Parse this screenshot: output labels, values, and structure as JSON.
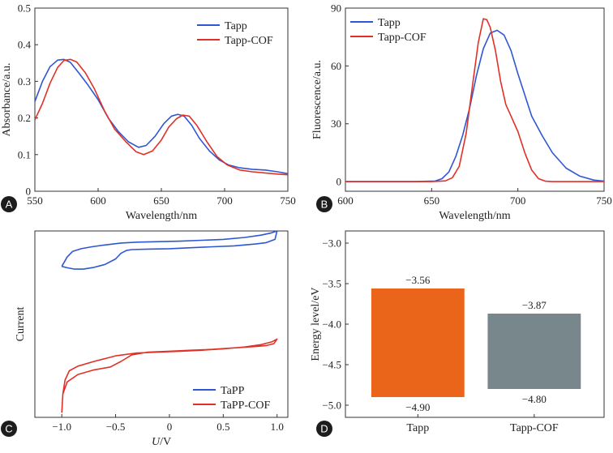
{
  "colors": {
    "blue": "#2f57d4",
    "red": "#e03128",
    "orange": "#ea6419",
    "gray": "#78878c",
    "axis": "#333333"
  },
  "chart_data": [
    {
      "panel": "A",
      "type": "line",
      "xlabel": "Wavelength/nm",
      "ylabel": "Absorbance/a.u.",
      "xlim": [
        550,
        750
      ],
      "ylim": [
        0,
        0.5
      ],
      "xticks": [
        550,
        600,
        650,
        700,
        750
      ],
      "yticks": [
        0,
        0.1,
        0.2,
        0.3,
        0.4,
        0.5
      ],
      "xtick_labels": [
        "550",
        "600",
        "650",
        "700",
        "750"
      ],
      "ytick_labels": [
        "0",
        "0.1",
        "0.2",
        "0.3",
        "0.4",
        "0.5"
      ],
      "legend": "top-right",
      "series": [
        {
          "name": "Tapp",
          "color": "#2f57d4",
          "x": [
            550,
            556,
            562,
            568,
            573,
            578,
            585,
            592,
            600,
            608,
            616,
            624,
            632,
            638,
            645,
            652,
            658,
            663,
            668,
            674,
            680,
            688,
            696,
            703,
            712,
            722,
            732,
            742,
            750
          ],
          "y": [
            0.245,
            0.3,
            0.34,
            0.358,
            0.36,
            0.352,
            0.322,
            0.29,
            0.25,
            0.2,
            0.163,
            0.135,
            0.12,
            0.125,
            0.15,
            0.185,
            0.205,
            0.21,
            0.205,
            0.18,
            0.145,
            0.11,
            0.085,
            0.072,
            0.064,
            0.06,
            0.058,
            0.053,
            0.048
          ]
        },
        {
          "name": "Tapp-COF",
          "color": "#e03128",
          "x": [
            550,
            556,
            562,
            568,
            573,
            578,
            583,
            590,
            597,
            605,
            613,
            622,
            630,
            636,
            643,
            650,
            656,
            662,
            667,
            672,
            678,
            686,
            694,
            702,
            712,
            722,
            732,
            742,
            750
          ],
          "y": [
            0.195,
            0.24,
            0.295,
            0.338,
            0.357,
            0.36,
            0.353,
            0.323,
            0.28,
            0.22,
            0.17,
            0.135,
            0.108,
            0.1,
            0.11,
            0.14,
            0.176,
            0.198,
            0.208,
            0.205,
            0.18,
            0.135,
            0.095,
            0.072,
            0.058,
            0.053,
            0.05,
            0.047,
            0.045
          ]
        }
      ]
    },
    {
      "panel": "B",
      "type": "line",
      "xlabel": "Wavelength/nm",
      "ylabel": "Fluorescence/a.u.",
      "xlim": [
        600,
        750
      ],
      "ylim": [
        -5,
        90
      ],
      "xticks": [
        600,
        650,
        700,
        750
      ],
      "yticks": [
        0,
        30,
        60,
        90
      ],
      "xtick_labels": [
        "600",
        "650",
        "700",
        "750"
      ],
      "ytick_labels": [
        "0",
        "30",
        "60",
        "90"
      ],
      "legend": "top-left",
      "series": [
        {
          "name": "Tapp",
          "color": "#2f57d4",
          "x": [
            600,
            640,
            652,
            656,
            660,
            664,
            668,
            672,
            676,
            680,
            684,
            688,
            692,
            696,
            700,
            704,
            708,
            714,
            720,
            728,
            736,
            744,
            750
          ],
          "y": [
            0,
            0,
            0.3,
            1.5,
            5,
            13,
            24,
            38,
            55,
            69,
            77,
            78.5,
            76,
            68,
            56,
            45,
            34,
            24,
            15,
            7,
            2.8,
            0.8,
            0.2
          ]
        },
        {
          "name": "Tapp-COF",
          "color": "#e03128",
          "x": [
            600,
            650,
            658,
            662,
            666,
            670,
            674,
            677,
            680,
            682,
            684,
            687,
            690,
            693,
            696,
            700,
            704,
            708,
            712,
            716,
            720,
            730,
            750
          ],
          "y": [
            0,
            0,
            0.4,
            2,
            8,
            25,
            52,
            72,
            84.5,
            84,
            80,
            68,
            52,
            40,
            34,
            26,
            15,
            6,
            1.5,
            0.2,
            0,
            0,
            0
          ]
        }
      ]
    },
    {
      "panel": "C",
      "type": "line",
      "xlabel": "U/V",
      "ylabel": "Current",
      "xlim": [
        -1.25,
        1.1
      ],
      "ylim": [
        -1,
        1
      ],
      "xticks": [
        -1.0,
        -0.5,
        0,
        0.5,
        1.0
      ],
      "xtick_labels": [
        "−1.0",
        "−0.5",
        "0",
        "0.5",
        "1.0"
      ],
      "legend": "bottom-right",
      "series": [
        {
          "name": "TaPP",
          "color": "#2f57d4",
          "x": [
            -1.0,
            -0.95,
            -0.9,
            -0.82,
            -0.72,
            -0.6,
            -0.45,
            -0.3,
            -0.1,
            0.1,
            0.3,
            0.5,
            0.7,
            0.85,
            0.95,
            1.0,
            0.98,
            0.9,
            0.8,
            0.6,
            0.4,
            0.2,
            0.0,
            -0.2,
            -0.35,
            -0.4,
            -0.45,
            -0.5,
            -0.6,
            -0.7,
            -0.8,
            -0.88,
            -0.95,
            -1.0
          ],
          "y": [
            0.62,
            0.72,
            0.78,
            0.81,
            0.83,
            0.85,
            0.87,
            0.88,
            0.885,
            0.89,
            0.9,
            0.91,
            0.93,
            0.955,
            0.98,
            1.0,
            0.91,
            0.875,
            0.86,
            0.84,
            0.83,
            0.82,
            0.81,
            0.805,
            0.8,
            0.79,
            0.76,
            0.7,
            0.64,
            0.61,
            0.59,
            0.59,
            0.605,
            0.62
          ]
        },
        {
          "name": "TaPP-COF",
          "color": "#e03128",
          "x": [
            -1.0,
            -0.99,
            -0.97,
            -0.93,
            -0.85,
            -0.7,
            -0.5,
            -0.3,
            -0.1,
            0.1,
            0.3,
            0.5,
            0.7,
            0.85,
            0.95,
            1.0,
            0.97,
            0.9,
            0.8,
            0.6,
            0.4,
            0.2,
            0.0,
            -0.2,
            -0.35,
            -0.45,
            -0.55,
            -0.7,
            -0.85,
            -0.95,
            -0.99,
            -1.0
          ],
          "y": [
            -0.95,
            -0.75,
            -0.6,
            -0.5,
            -0.45,
            -0.4,
            -0.34,
            -0.31,
            -0.3,
            -0.29,
            -0.28,
            -0.265,
            -0.245,
            -0.22,
            -0.19,
            -0.16,
            -0.21,
            -0.23,
            -0.24,
            -0.255,
            -0.27,
            -0.28,
            -0.29,
            -0.3,
            -0.33,
            -0.4,
            -0.46,
            -0.49,
            -0.54,
            -0.62,
            -0.75,
            -0.95
          ]
        }
      ]
    },
    {
      "panel": "D",
      "type": "bar",
      "ylabel": "Energy level/eV",
      "ylim": [
        -5.15,
        -2.85
      ],
      "yticks": [
        -3.0,
        -3.5,
        -4.0,
        -4.5,
        -5.0
      ],
      "ytick_labels": [
        "−3.0",
        "−3.5",
        "−4.0",
        "−4.5",
        "−5.0"
      ],
      "categories": [
        "Tapp",
        "Tapp-COF"
      ],
      "bars": [
        {
          "name": "Tapp",
          "top": -3.56,
          "bottom": -4.9,
          "top_label": "−3.56",
          "bottom_label": "−4.90",
          "color": "#ea6419"
        },
        {
          "name": "Tapp-COF",
          "top": -3.87,
          "bottom": -4.8,
          "top_label": "−3.87",
          "bottom_label": "−4.80",
          "color": "#78878c"
        }
      ]
    }
  ]
}
